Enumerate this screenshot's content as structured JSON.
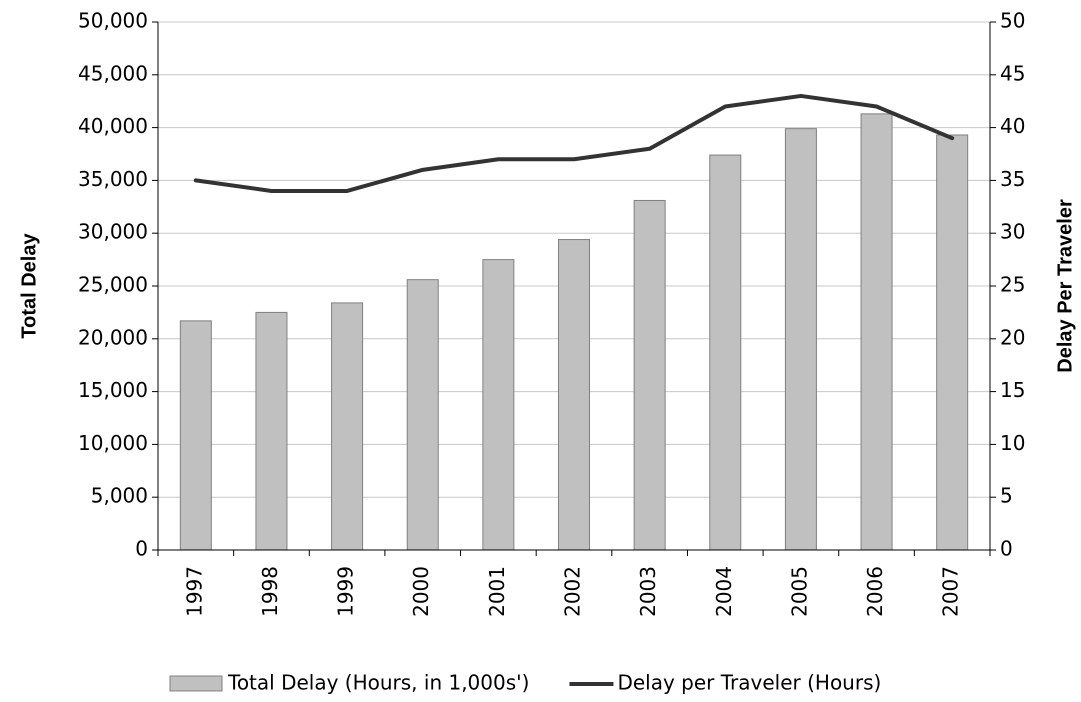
{
  "chart_data": {
    "type": "bar-line",
    "categories": [
      "1997",
      "1998",
      "1999",
      "2000",
      "2001",
      "2002",
      "2003",
      "2004",
      "2005",
      "2006",
      "2007"
    ],
    "series": [
      {
        "name": "Total Delay (Hours, in 1,000s')",
        "type": "bar",
        "color": "#c0c0c0",
        "values": [
          21700,
          22500,
          23400,
          25600,
          27500,
          29400,
          33100,
          37400,
          39900,
          41300,
          39300
        ]
      },
      {
        "name": "Delay per Traveler (Hours)",
        "type": "line",
        "axis": "y2",
        "color": "#333333",
        "values": [
          35,
          34,
          34,
          36,
          37,
          37,
          38,
          42,
          43,
          42,
          39
        ]
      }
    ],
    "ylabel": "Total Delay",
    "y2label": "Delay Per Traveler",
    "ylim": [
      0,
      50000
    ],
    "yticks": [
      0,
      {
        "value": 5000,
        "label": "5,000"
      },
      {
        "value": 10000,
        "label": "10,000"
      },
      {
        "value": 15000,
        "label": "15,000"
      },
      {
        "value": 20000,
        "label": "20,000"
      },
      {
        "value": 25000,
        "label": "25,000"
      },
      {
        "value": 30000,
        "label": "30,000"
      },
      {
        "value": 35000,
        "label": "35,000"
      },
      {
        "value": 40000,
        "label": "40,000"
      },
      {
        "value": 45000,
        "label": "45,000"
      },
      {
        "value": 50000,
        "label": "50,000"
      }
    ],
    "y2lim": [
      0,
      50
    ],
    "y2ticks": [
      0,
      5,
      10,
      15,
      20,
      25,
      30,
      35,
      40,
      45,
      50
    ],
    "grid": true,
    "legend": "bottom"
  }
}
